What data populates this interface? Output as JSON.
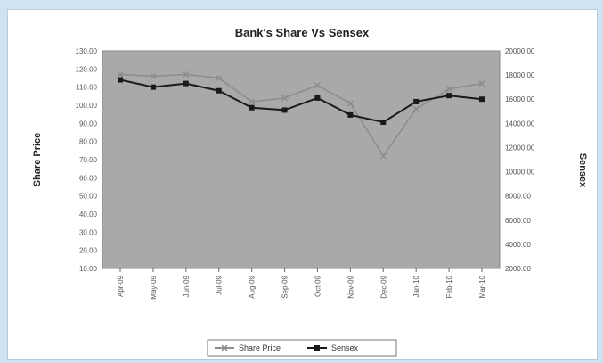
{
  "chart_data": {
    "type": "line",
    "title": "Bank's Share Vs Sensex",
    "ylabel": "Share Price",
    "y2label": "Sensex",
    "categories": [
      "Apr-09",
      "May-09",
      "Jun-09",
      "Jul-09",
      "Aug-09",
      "Sep-09",
      "Oct-09",
      "Nov-09",
      "Dec-09",
      "Jan-10",
      "Feb-10",
      "Mar-10"
    ],
    "ylim": [
      10,
      130
    ],
    "y2lim": [
      2000,
      20000
    ],
    "yticks": [
      "130.00",
      "120.00",
      "110.00",
      "100.00",
      "90.00",
      "80.00",
      "70.00",
      "60.00",
      "50.00",
      "40.00",
      "30.00",
      "20.00",
      "10.00"
    ],
    "y2ticks": [
      "20000.00",
      "18000.00",
      "16000.00",
      "14000.00",
      "12000.00",
      "10000.00",
      "8000.00",
      "6000.00",
      "4000.00",
      "2000.00"
    ],
    "series": [
      {
        "name": "Share Price",
        "axis": "left",
        "color": "#8c8c8c",
        "marker": "x",
        "values": [
          117,
          116,
          117,
          115,
          102,
          104,
          111,
          101,
          72,
          98,
          109,
          112
        ]
      },
      {
        "name": "Sensex",
        "axis": "right",
        "color": "#1a1a1a",
        "marker": "square",
        "values": [
          17600,
          17000,
          17300,
          16700,
          15300,
          15100,
          16100,
          14700,
          14100,
          15800,
          16300,
          16000
        ]
      }
    ],
    "grid": false,
    "plot_background": "#a9a9a9",
    "legend": "bottom"
  }
}
